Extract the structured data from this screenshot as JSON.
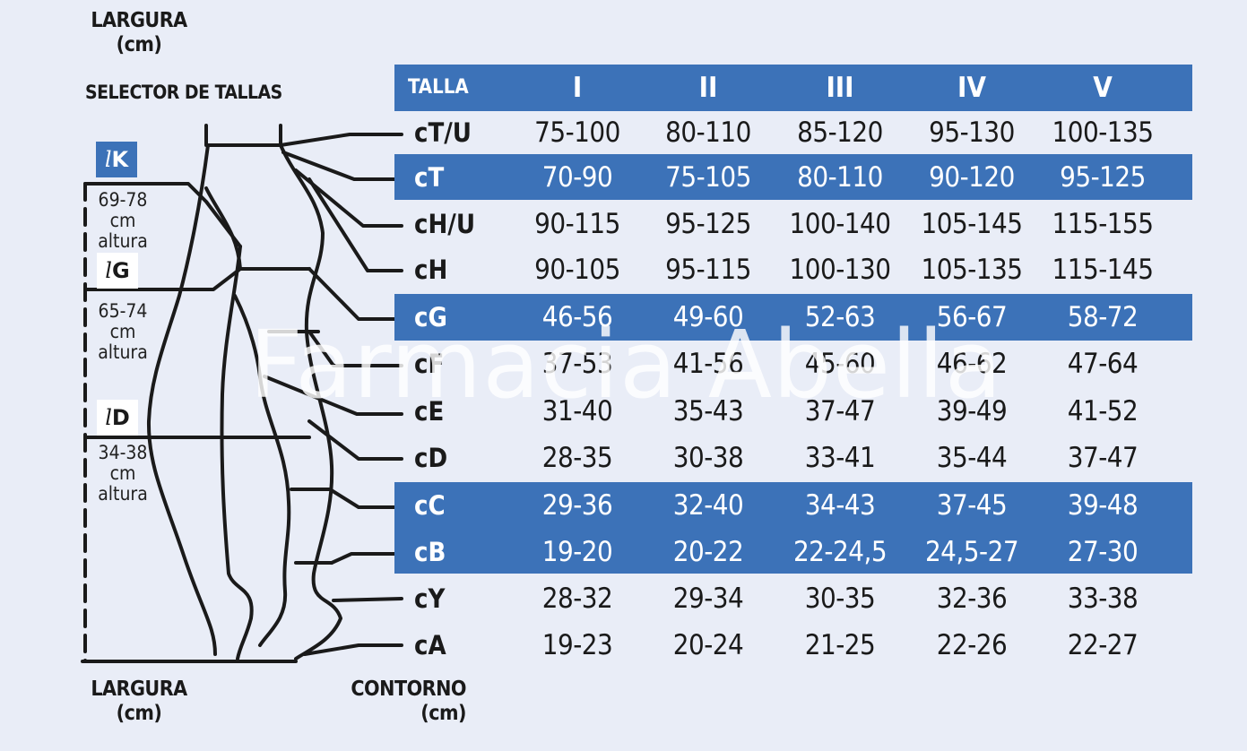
{
  "header": {
    "unit_top": "LARGURA\n(cm)",
    "unit_top_line1": "LARGURA",
    "unit_top_line2": "(cm)",
    "selector_title": "SELECTOR DE TALLAS"
  },
  "footer": {
    "largura_line1": "LARGURA",
    "largura_line2": "(cm)",
    "contorno_line1": "CONTORNO",
    "contorno_line2": "(cm)"
  },
  "zones": [
    {
      "letter": "K",
      "prefix": "l",
      "range": "69-78",
      "unit": "cm",
      "word": "altura",
      "highlight": true
    },
    {
      "letter": "G",
      "prefix": "l",
      "range": "65-74",
      "unit": "cm",
      "word": "altura",
      "highlight": false
    },
    {
      "letter": "D",
      "prefix": "l",
      "range": "34-38",
      "unit": "cm",
      "word": "altura",
      "highlight": false
    }
  ],
  "table": {
    "corner": "TALLA",
    "sizes": [
      "I",
      "II",
      "III",
      "IV",
      "V"
    ],
    "rows": [
      {
        "label": "cT/U",
        "values": [
          "75-100",
          "80-110",
          "85-120",
          "95-130",
          "100-135"
        ],
        "highlight": false
      },
      {
        "label": "cT",
        "values": [
          "70-90",
          "75-105",
          "80-110",
          "90-120",
          "95-125"
        ],
        "highlight": true
      },
      {
        "label": "cH/U",
        "values": [
          "90-115",
          "95-125",
          "100-140",
          "105-145",
          "115-155"
        ],
        "highlight": false
      },
      {
        "label": "cH",
        "values": [
          "90-105",
          "95-115",
          "100-130",
          "105-135",
          "115-145"
        ],
        "highlight": false
      },
      {
        "label": "cG",
        "values": [
          "46-56",
          "49-60",
          "52-63",
          "56-67",
          "58-72"
        ],
        "highlight": true
      },
      {
        "label": "cF",
        "values": [
          "37-53",
          "41-56",
          "45-60",
          "46-62",
          "47-64"
        ],
        "highlight": false
      },
      {
        "label": "cE",
        "values": [
          "31-40",
          "35-43",
          "37-47",
          "39-49",
          "41-52"
        ],
        "highlight": false
      },
      {
        "label": "cD",
        "values": [
          "28-35",
          "30-38",
          "33-41",
          "35-44",
          "37-47"
        ],
        "highlight": false
      },
      {
        "label": "cC",
        "values": [
          "29-36",
          "32-40",
          "34-43",
          "37-45",
          "39-48"
        ],
        "highlight": true
      },
      {
        "label": "cB",
        "values": [
          "19-20",
          "20-22",
          "22-24,5",
          "24,5-27",
          "27-30"
        ],
        "highlight": true
      },
      {
        "label": "cY",
        "values": [
          "28-32",
          "29-34",
          "30-35",
          "32-36",
          "33-38"
        ],
        "highlight": false
      },
      {
        "label": "cA",
        "values": [
          "19-23",
          "20-24",
          "21-25",
          "22-26",
          "22-27"
        ],
        "highlight": false
      }
    ]
  },
  "watermark": "Farmacia Abella",
  "colors": {
    "accent": "#3c72b8",
    "background": "#e9edf7"
  }
}
